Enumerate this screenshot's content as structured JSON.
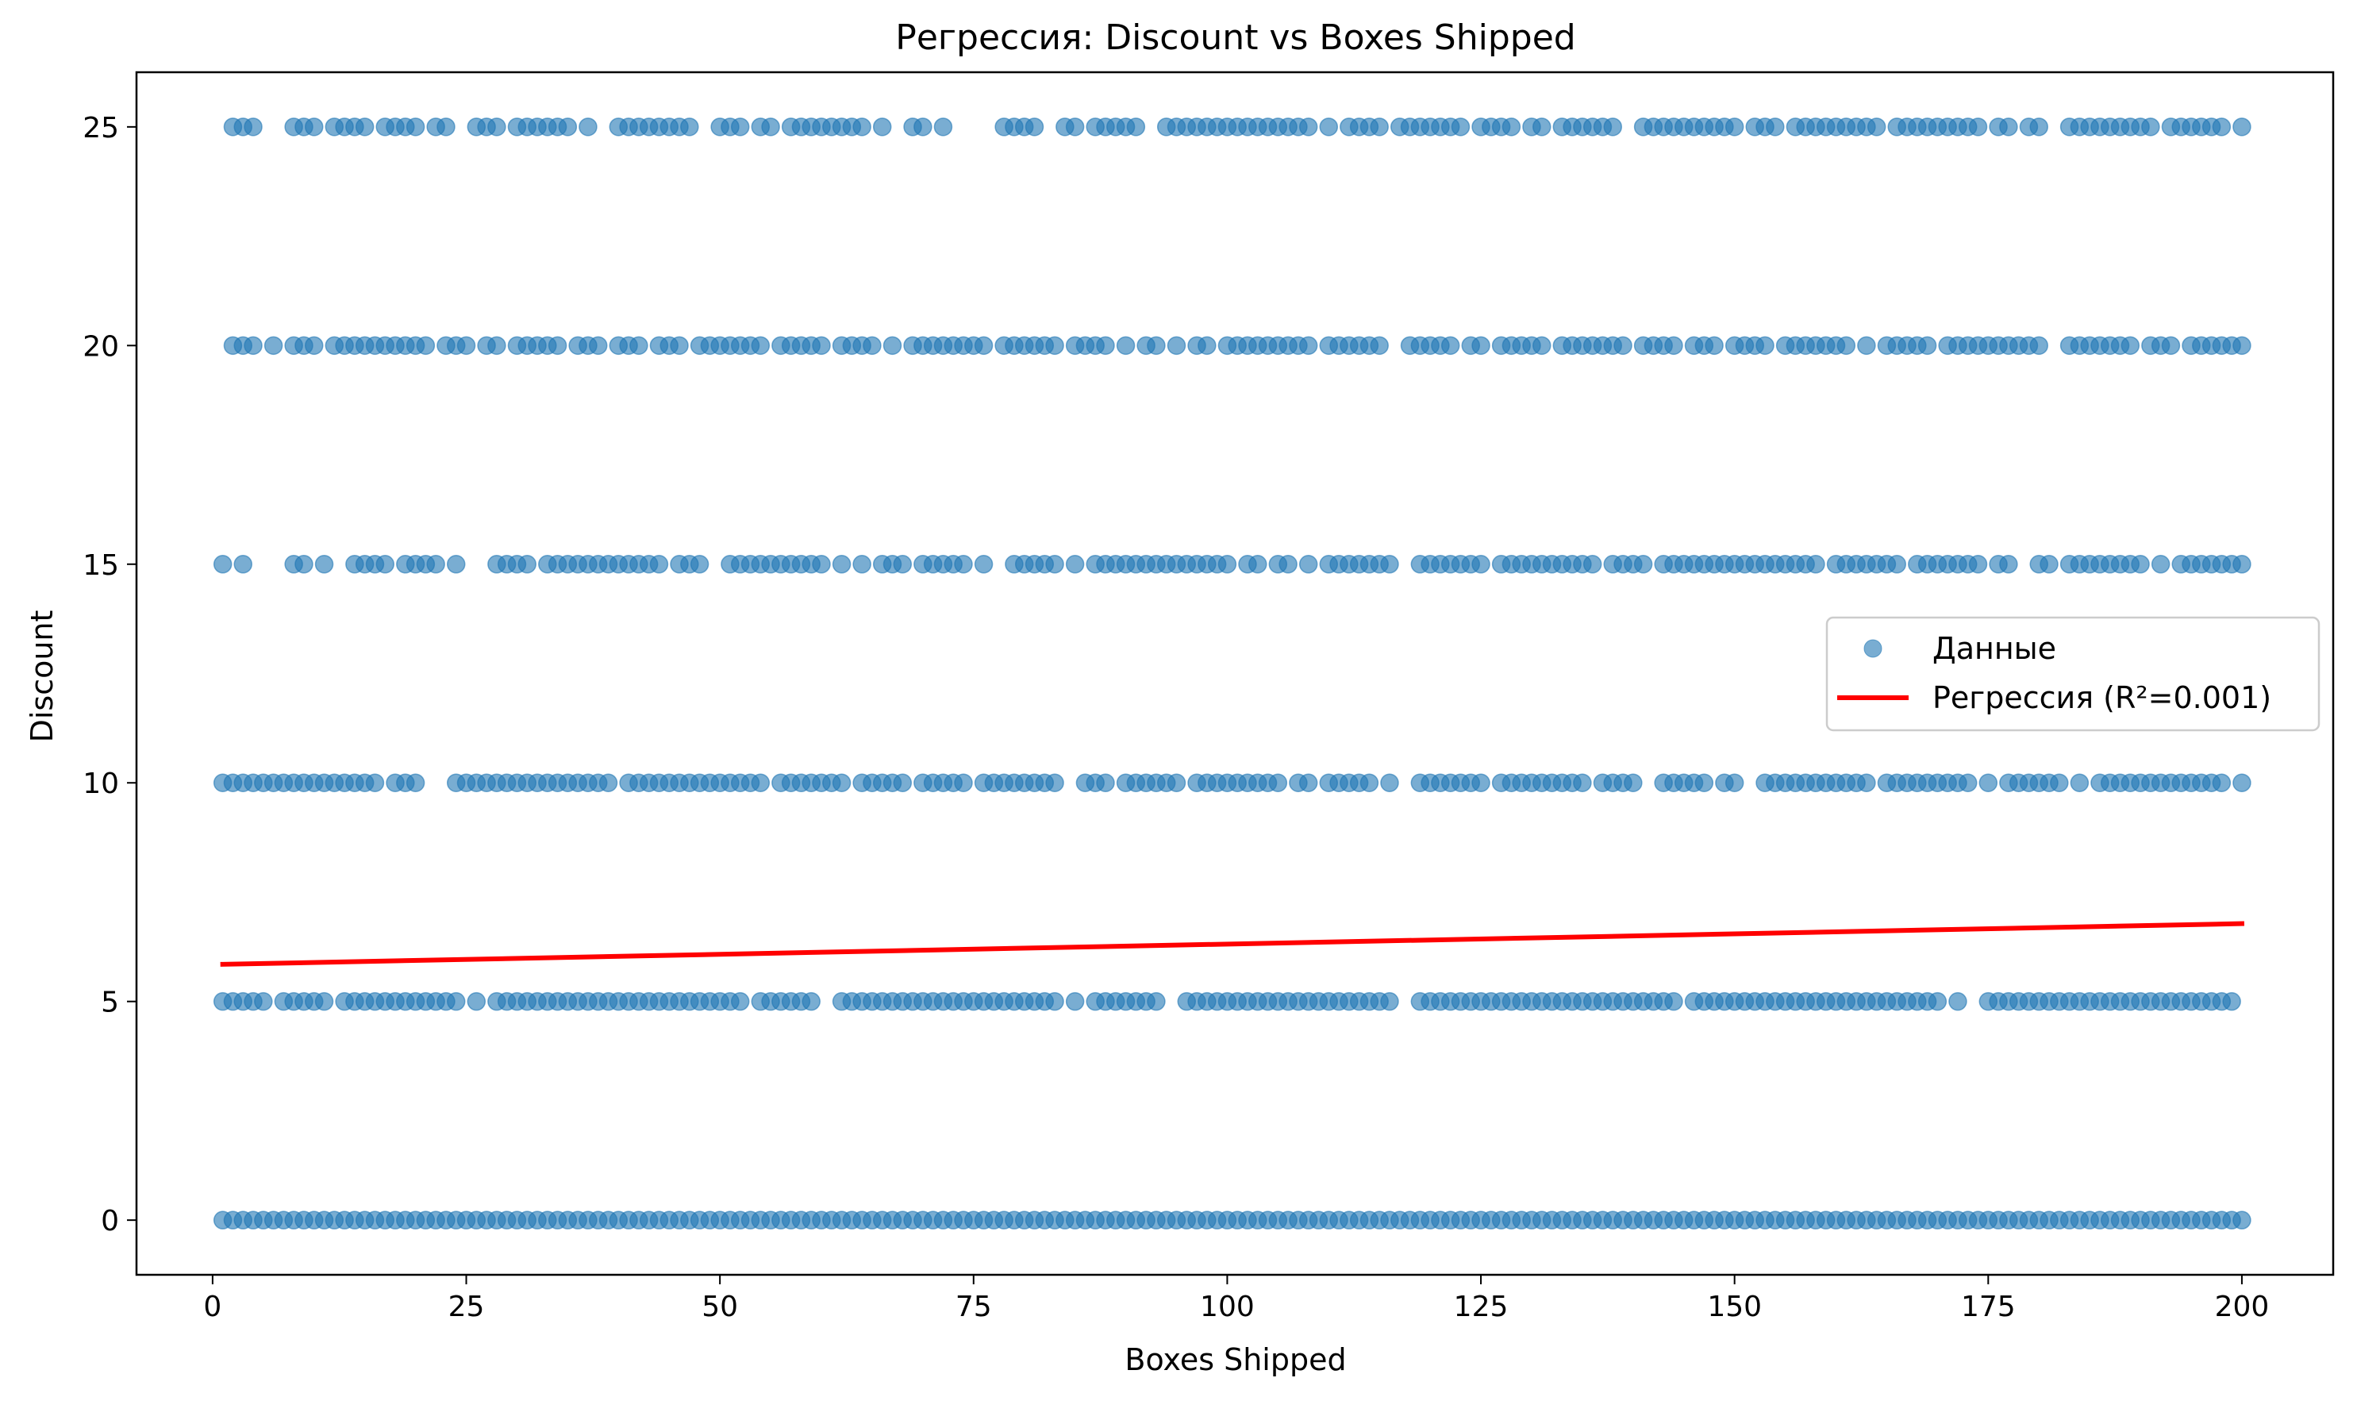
{
  "chart_data": {
    "type": "scatter",
    "title": "Регрессия: Discount vs Boxes Shipped",
    "xlabel": "Boxes Shipped",
    "ylabel": "Discount",
    "xlim": [
      -7.5,
      209
    ],
    "ylim": [
      -1.25,
      26.25
    ],
    "xticks": [
      0,
      25,
      50,
      75,
      100,
      125,
      150,
      175,
      200
    ],
    "yticks": [
      0,
      5,
      10,
      15,
      20,
      25
    ],
    "grid": false,
    "legend_position": "center-right",
    "colors": {
      "points": "#1f77b4",
      "regression": "#ff0000"
    },
    "series": [
      {
        "name": "Данные",
        "kind": "scatter",
        "levels": [
          {
            "y": 25,
            "x": [
              2,
              3,
              4,
              8,
              9,
              10,
              12,
              13,
              14,
              15,
              17,
              18,
              19,
              20,
              22,
              23,
              26,
              27,
              28,
              30,
              31,
              32,
              33,
              34,
              35,
              37,
              40,
              41,
              42,
              43,
              44,
              45,
              46,
              47,
              50,
              51,
              52,
              54,
              55,
              57,
              58,
              59,
              60,
              61,
              62,
              63,
              64,
              66,
              69,
              70,
              72,
              78,
              79,
              80,
              81,
              84,
              85,
              87,
              88,
              89,
              90,
              91,
              94,
              95,
              96,
              97,
              98,
              99,
              100,
              101,
              102,
              103,
              104,
              105,
              106,
              107,
              108,
              110,
              112,
              113,
              114,
              115,
              117,
              118,
              119,
              120,
              121,
              122,
              123,
              125,
              126,
              127,
              128,
              130,
              131,
              133,
              134,
              135,
              136,
              137,
              138,
              141,
              142,
              143,
              144,
              145,
              146,
              147,
              148,
              149,
              150,
              152,
              153,
              154,
              156,
              157,
              158,
              159,
              160,
              161,
              162,
              163,
              164,
              166,
              167,
              168,
              169,
              170,
              171,
              172,
              173,
              174,
              176,
              177,
              179,
              180,
              183,
              184,
              185,
              186,
              187,
              188,
              189,
              190,
              191,
              193,
              194,
              195,
              196,
              197,
              198,
              200
            ]
          },
          {
            "y": 20,
            "x": [
              2,
              3,
              4,
              6,
              8,
              9,
              10,
              12,
              13,
              14,
              15,
              16,
              17,
              18,
              19,
              20,
              21,
              23,
              24,
              25,
              27,
              28,
              30,
              31,
              32,
              33,
              34,
              36,
              37,
              38,
              40,
              41,
              42,
              44,
              45,
              46,
              48,
              49,
              50,
              51,
              52,
              53,
              54,
              56,
              57,
              58,
              59,
              60,
              62,
              63,
              64,
              65,
              67,
              69,
              70,
              71,
              72,
              73,
              74,
              75,
              76,
              78,
              79,
              80,
              81,
              82,
              83,
              85,
              86,
              87,
              88,
              90,
              92,
              93,
              95,
              97,
              98,
              100,
              101,
              102,
              103,
              104,
              105,
              106,
              107,
              108,
              110,
              111,
              112,
              113,
              114,
              115,
              118,
              119,
              120,
              121,
              122,
              124,
              125,
              127,
              128,
              129,
              130,
              131,
              133,
              134,
              135,
              136,
              137,
              138,
              139,
              141,
              142,
              143,
              144,
              146,
              147,
              148,
              150,
              151,
              152,
              153,
              155,
              156,
              157,
              158,
              159,
              160,
              161,
              163,
              165,
              166,
              167,
              168,
              169,
              171,
              172,
              173,
              174,
              175,
              176,
              177,
              178,
              179,
              180,
              183,
              184,
              185,
              186,
              187,
              188,
              189,
              191,
              192,
              193,
              195,
              196,
              197,
              198,
              199,
              200
            ]
          },
          {
            "y": 15,
            "x": [
              1,
              3,
              8,
              9,
              11,
              14,
              15,
              16,
              17,
              19,
              20,
              21,
              22,
              24,
              28,
              29,
              30,
              31,
              33,
              34,
              35,
              36,
              37,
              38,
              39,
              40,
              41,
              42,
              43,
              44,
              46,
              47,
              48,
              51,
              52,
              53,
              54,
              55,
              56,
              57,
              58,
              59,
              60,
              62,
              64,
              66,
              67,
              68,
              70,
              71,
              72,
              73,
              74,
              76,
              79,
              80,
              81,
              82,
              83,
              85,
              87,
              88,
              89,
              90,
              91,
              92,
              93,
              94,
              95,
              96,
              97,
              98,
              99,
              100,
              102,
              103,
              105,
              106,
              108,
              110,
              111,
              112,
              113,
              114,
              115,
              116,
              119,
              120,
              121,
              122,
              123,
              124,
              125,
              127,
              128,
              129,
              130,
              131,
              132,
              133,
              134,
              135,
              136,
              138,
              139,
              140,
              141,
              143,
              144,
              145,
              146,
              147,
              148,
              149,
              150,
              151,
              152,
              153,
              154,
              155,
              156,
              157,
              158,
              160,
              161,
              162,
              163,
              164,
              165,
              166,
              168,
              169,
              170,
              171,
              172,
              173,
              174,
              176,
              177,
              180,
              181,
              183,
              184,
              185,
              186,
              187,
              188,
              189,
              190,
              192,
              194,
              195,
              196,
              197,
              198,
              199,
              200
            ]
          },
          {
            "y": 10,
            "x": [
              1,
              2,
              3,
              4,
              5,
              6,
              7,
              8,
              9,
              10,
              11,
              12,
              13,
              14,
              15,
              16,
              18,
              19,
              20,
              24,
              25,
              26,
              27,
              28,
              29,
              30,
              31,
              32,
              33,
              34,
              35,
              36,
              37,
              38,
              39,
              41,
              42,
              43,
              44,
              45,
              46,
              47,
              48,
              49,
              50,
              51,
              52,
              53,
              54,
              56,
              57,
              58,
              59,
              60,
              61,
              62,
              64,
              65,
              66,
              67,
              68,
              70,
              71,
              72,
              73,
              74,
              76,
              77,
              78,
              79,
              80,
              81,
              82,
              83,
              86,
              87,
              88,
              90,
              91,
              92,
              93,
              94,
              95,
              97,
              98,
              99,
              100,
              101,
              102,
              103,
              104,
              105,
              107,
              108,
              110,
              111,
              112,
              113,
              114,
              116,
              119,
              120,
              121,
              122,
              123,
              124,
              125,
              127,
              128,
              129,
              130,
              131,
              132,
              133,
              134,
              135,
              137,
              138,
              139,
              140,
              143,
              144,
              145,
              146,
              147,
              149,
              150,
              153,
              154,
              155,
              156,
              157,
              158,
              159,
              160,
              161,
              162,
              163,
              165,
              166,
              167,
              168,
              169,
              170,
              171,
              172,
              173,
              175,
              177,
              178,
              179,
              180,
              181,
              182,
              184,
              186,
              187,
              188,
              189,
              190,
              191,
              192,
              193,
              194,
              195,
              196,
              197,
              198,
              200
            ]
          },
          {
            "y": 5,
            "x": [
              1,
              2,
              3,
              4,
              5,
              7,
              8,
              9,
              10,
              11,
              13,
              14,
              15,
              16,
              17,
              18,
              19,
              20,
              21,
              22,
              23,
              24,
              26,
              28,
              29,
              30,
              31,
              32,
              33,
              34,
              35,
              36,
              37,
              38,
              39,
              40,
              41,
              42,
              43,
              44,
              45,
              46,
              47,
              48,
              49,
              50,
              51,
              52,
              54,
              55,
              56,
              57,
              58,
              59,
              62,
              63,
              64,
              65,
              66,
              67,
              68,
              69,
              70,
              71,
              72,
              73,
              74,
              75,
              76,
              77,
              78,
              79,
              80,
              81,
              82,
              83,
              85,
              87,
              88,
              89,
              90,
              91,
              92,
              93,
              96,
              97,
              98,
              99,
              100,
              101,
              102,
              103,
              104,
              105,
              106,
              107,
              108,
              109,
              110,
              111,
              112,
              113,
              114,
              115,
              116,
              119,
              120,
              121,
              122,
              123,
              124,
              125,
              126,
              127,
              128,
              129,
              130,
              131,
              132,
              133,
              134,
              135,
              136,
              137,
              138,
              139,
              140,
              141,
              142,
              143,
              144,
              146,
              147,
              148,
              149,
              150,
              151,
              152,
              153,
              154,
              155,
              156,
              157,
              158,
              159,
              160,
              161,
              162,
              163,
              164,
              165,
              166,
              167,
              168,
              169,
              170,
              172,
              175,
              176,
              177,
              178,
              179,
              180,
              181,
              182,
              183,
              184,
              185,
              186,
              187,
              188,
              189,
              190,
              191,
              192,
              193,
              194,
              195,
              196,
              197,
              198,
              199
            ]
          },
          {
            "y": 0,
            "x_range": [
              1,
              200
            ]
          }
        ]
      },
      {
        "name": "Регрессия (R²=0.001)",
        "kind": "line",
        "x": [
          1,
          200
        ],
        "y": [
          5.85,
          6.78
        ]
      }
    ]
  }
}
